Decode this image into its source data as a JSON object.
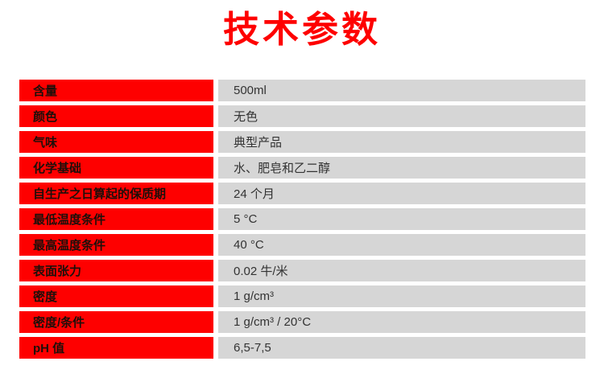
{
  "title": "技术参数",
  "colors": {
    "accent-red": "#fe0000",
    "cell-gray": "#d6d6d6",
    "label-text": "#1d0f0a",
    "value-text": "#333333",
    "background": "#ffffff"
  },
  "table": {
    "rows": [
      {
        "label": "含量",
        "value": "500ml"
      },
      {
        "label": "颜色",
        "value": "无色"
      },
      {
        "label": "气味",
        "value": "典型产品"
      },
      {
        "label": "化学基础",
        "value": "水、肥皂和乙二醇"
      },
      {
        "label": "自生产之日算起的保质期",
        "value": "24 个月"
      },
      {
        "label": "最低温度条件",
        "value": "5 °C"
      },
      {
        "label": "最高温度条件",
        "value": "40 °C"
      },
      {
        "label": "表面张力",
        "value": "0.02 牛/米"
      },
      {
        "label": "密度",
        "value": "1 g/cm³"
      },
      {
        "label": "密度/条件",
        "value": "1 g/cm³ / 20°C"
      },
      {
        "label": "pH 值",
        "value": "6,5-7,5"
      }
    ]
  }
}
